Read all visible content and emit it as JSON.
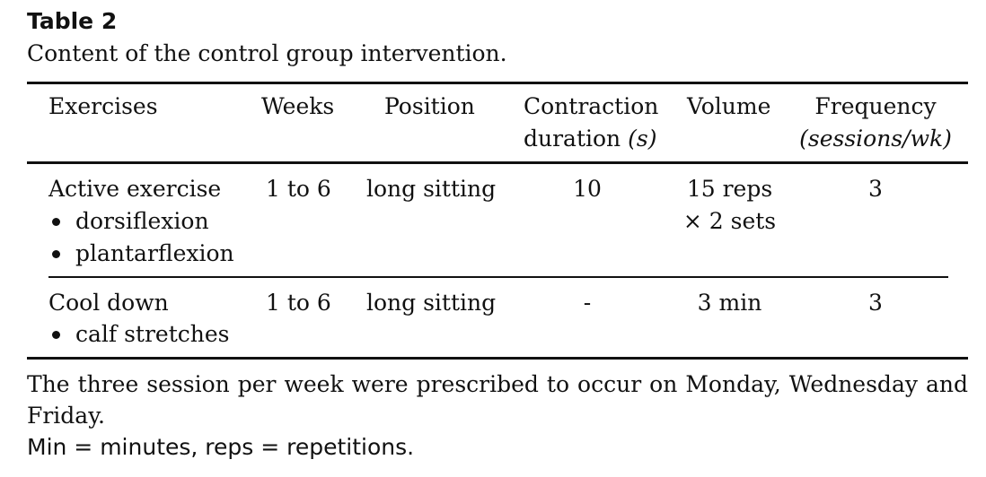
{
  "table": {
    "label": "Table 2",
    "caption": "Content of the control group intervention.",
    "headers": {
      "exercises": "Exercises",
      "weeks": "Weeks",
      "position": "Position",
      "contraction_line1": "Contraction",
      "contraction_line2": "duration",
      "contraction_unit": "(s)",
      "volume": "Volume",
      "frequency_line1": "Frequency",
      "frequency_unit": "(sessions/wk)"
    },
    "rows": [
      {
        "exercise": "Active exercise",
        "sub_items": [
          "dorsiflexion",
          "plantarflexion"
        ],
        "weeks": "1 to 6",
        "position": "long sitting",
        "contraction": "10",
        "volume_line1": "15 reps",
        "volume_line2": "× 2 sets",
        "frequency": "3"
      },
      {
        "exercise": "Cool down",
        "sub_items": [
          "calf stretches"
        ],
        "weeks": "1 to 6",
        "position": "long sitting",
        "contraction": "-",
        "volume_line1": "3 min",
        "frequency": "3"
      }
    ],
    "footnotes": [
      "The three session per week were prescribed to occur on Monday, Wednesday and",
      "Friday.",
      "Min = minutes, reps = repetitions."
    ]
  }
}
